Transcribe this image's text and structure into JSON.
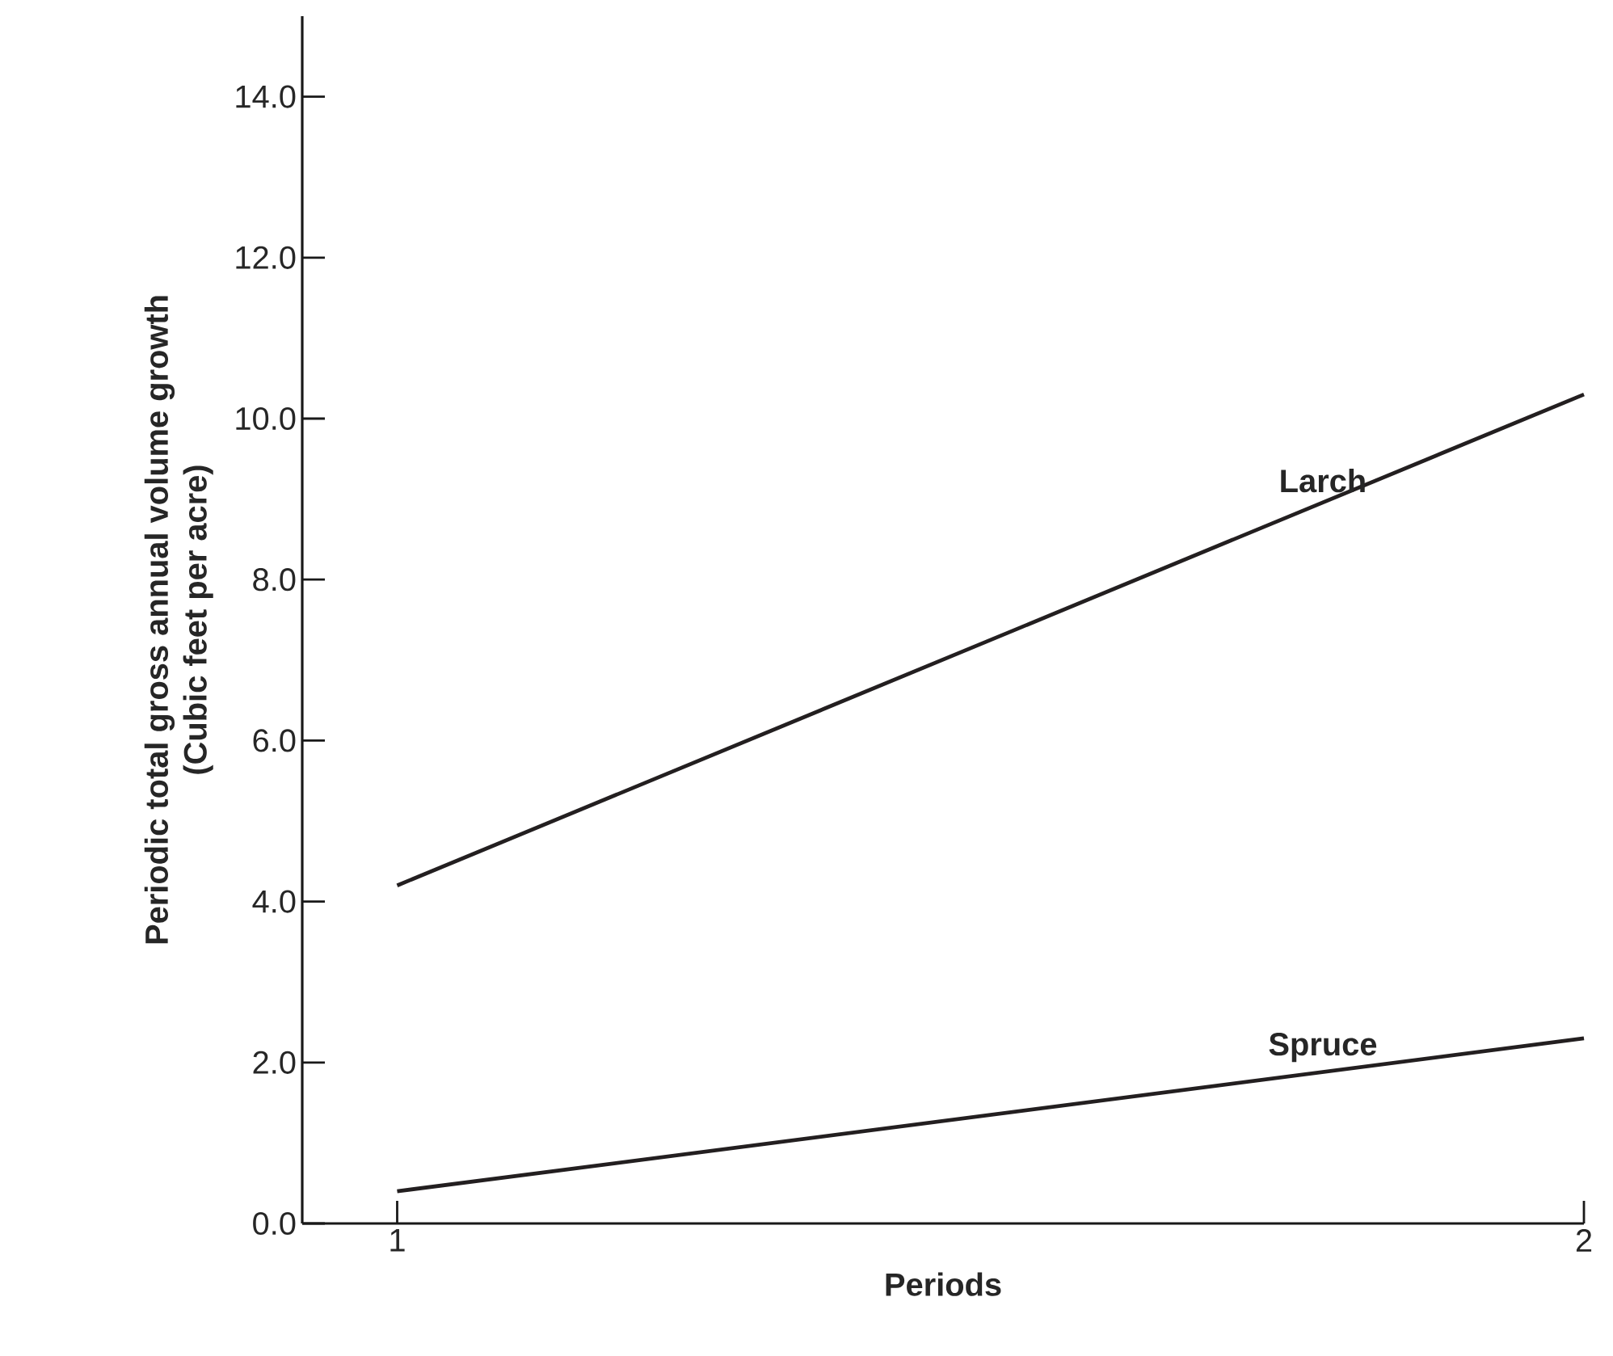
{
  "chart_data": {
    "type": "line",
    "xlabel": "Periods",
    "ylabel": "Periodic total gross annual volume growth\n(Cubic feet per acre)",
    "x": [
      1,
      2
    ],
    "series": [
      {
        "name": "Larch",
        "color": "#231f20",
        "values": [
          4.2,
          10.3
        ]
      },
      {
        "name": "Spruce",
        "color": "#231f20",
        "values": [
          0.4,
          2.3
        ]
      }
    ],
    "xlim": [
      0.92,
      2.0
    ],
    "ylim": [
      0,
      15.0
    ],
    "xticks": [
      1,
      2
    ],
    "yticks": [
      {
        "value": 0,
        "label": "0.0"
      },
      {
        "value": 2,
        "label": "2.0"
      },
      {
        "value": 4,
        "label": "4.0"
      },
      {
        "value": 6,
        "label": "6.0"
      },
      {
        "value": 8,
        "label": "8.0"
      },
      {
        "value": 10,
        "label": "10.0"
      },
      {
        "value": 12,
        "label": "12.0"
      },
      {
        "value": 14,
        "label": "14.0"
      }
    ],
    "grid": false,
    "legend": false,
    "marker": "none",
    "line_style": "solid"
  }
}
